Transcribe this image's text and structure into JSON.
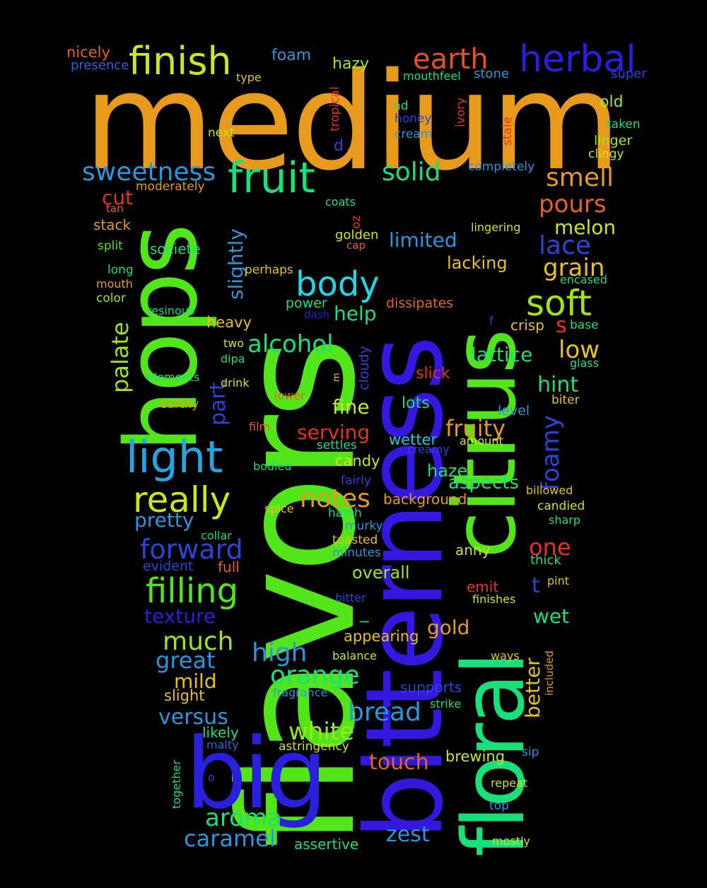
{
  "words": {
    "medium": "medium",
    "flavors": "flavors",
    "bitterness": "bitterness",
    "hops": "hops",
    "floral": "floral",
    "big": "big",
    "citrus": "citrus",
    "fruit": "fruit",
    "light": "light",
    "finish": "finish",
    "herbal": "herbal",
    "earth": "earth",
    "really": "really",
    "filling": "filling",
    "soft": "soft",
    "body": "body",
    "sweetness": "sweetness",
    "solid": "solid",
    "forward": "forward",
    "smell": "smell",
    "pours": "pours",
    "alcohol": "alcohol",
    "lace": "lace",
    "grain": "grain",
    "notes": "notes",
    "aroma": "aroma",
    "caramel": "caramel",
    "much": "much",
    "high": "high",
    "orange": "orange",
    "great": "great",
    "bread": "bread",
    "white": "white",
    "palate": "palate",
    "pretty": "pretty",
    "foamy": "foamy",
    "slightly": "slightly",
    "melon": "melon",
    "part": "part",
    "low": "low",
    "fruity": "fruity",
    "one": "one",
    "lattice": "lattice",
    "hint": "hint",
    "touch": "touch",
    "zest": "zest",
    "versus": "versus",
    "texture": "texture",
    "mild": "mild",
    "cut": "cut",
    "limited": "limited",
    "serving": "serving",
    "aspects": "aspects",
    "fine": "fine",
    "lacking": "lacking",
    "help": "help",
    "wet": "wet",
    "gold": "gold",
    "better": "better",
    "overall": "overall",
    "haze": "haze",
    "nicely": "nicely",
    "foam": "foam",
    "hazy": "hazy",
    "presence": "presence",
    "type": "type",
    "mouthfeel": "mouthfeel",
    "stone": "stone",
    "super": "super",
    "old": "old",
    "tropical": "tropical",
    "ivory": "ivory",
    "nd": "nd",
    "honey": "honey",
    "stale": "stale",
    "taken": "taken",
    "next": "next",
    "cream": "cream",
    "linger": "linger",
    "d": "d",
    "clingy": "clingy",
    "completely": "completely",
    "moderately": "moderately",
    "tan": "tan",
    "coats": "coats",
    "stack": "stack",
    "oz": "oz",
    "lingering": "lingering",
    "golden": "golden",
    "split": "split",
    "cap": "cap",
    "societe": "societe",
    "long": "long",
    "perhaps": "perhaps",
    "mouth": "mouth",
    "encased": "encased",
    "color": "color",
    "power": "power",
    "dissipates": "dissipates",
    "resinous": "resinous",
    "dash": "dash",
    "f": "f",
    "crisp": "crisp",
    "base": "base",
    "s": "s",
    "heavy": "heavy",
    "two": "two",
    "cloudy": "cloudy",
    "dipa": "dipa",
    "glass": "glass",
    "elements": "elements",
    "m": "m",
    "slick": "slick",
    "drink": "drink",
    "lower": "lower",
    "lots": "lots",
    "earthy": "earthy",
    "biter": "biter",
    "level": "level",
    "film": "film",
    "settles": "settles",
    "wetter": "wetter",
    "creamy": "creamy",
    "amount": "amount",
    "bodied": "bodied",
    "candy": "candy",
    "fairly": "fairly",
    "billowed": "billowed",
    "background": "background",
    "spice": "spice",
    "harsh": "harsh",
    "candied": "candied",
    "collar": "collar",
    "murky": "murky",
    "sharp": "sharp",
    "toasted": "toasted",
    "anny": "anny",
    "evident": "evident",
    "full": "full",
    "minutes": "minutes",
    "thick": "thick",
    "pint": "pint",
    "t": "t",
    "emit": "emit",
    "bitter": "bitter",
    "finishes": "finishes",
    "l": "l",
    "appearing": "appearing",
    "balance": "balance",
    "ways": "ways",
    "included": "included",
    "supports": "supports",
    "fragrance": "fragrance",
    "slight": "slight",
    "strike": "strike",
    "likely": "likely",
    "malty": "malty",
    "astringency": "astringency",
    "sip": "sip",
    "brewing": "brewing",
    "together": "together",
    "o": "o",
    "repeat": "repeat",
    "top": "top",
    "assertive": "assertive",
    "mostly": "mostly"
  },
  "colors": {
    "orange": "#e89a1c",
    "green": "#52e61a",
    "blue": "#2a1fdc",
    "teal": "#18e07a",
    "cyan": "#23c9e6",
    "yellow": "#cde51e",
    "red": "#e6331c",
    "sky": "#2898e0",
    "lime": "#9de61a",
    "amber": "#e8c21c"
  }
}
